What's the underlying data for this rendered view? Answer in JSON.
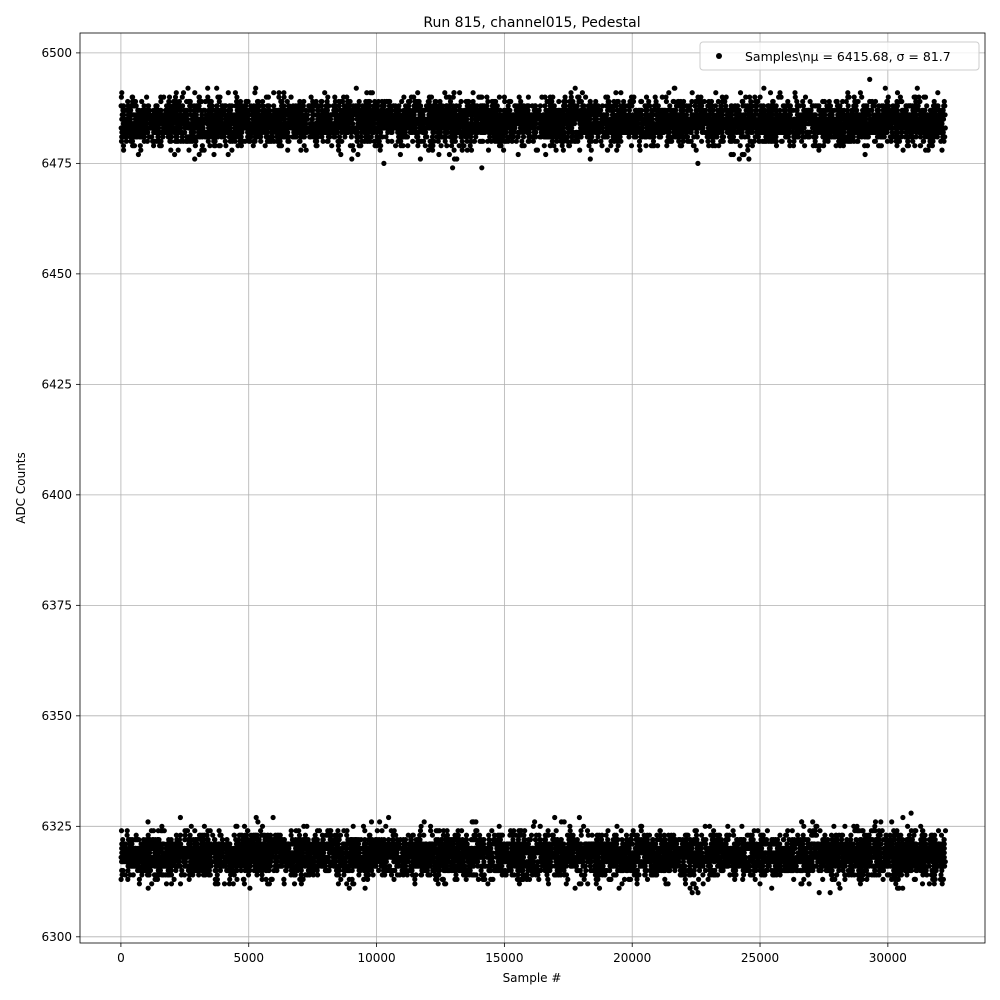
{
  "chart_data": {
    "type": "scatter",
    "title": "Run 815, channel015, Pedestal",
    "xlabel": "Sample #",
    "ylabel": "ADC Counts",
    "xlim": [
      -1600,
      33800
    ],
    "ylim": [
      6298.6,
      6504.5
    ],
    "xticks": [
      0,
      5000,
      10000,
      15000,
      20000,
      25000,
      30000
    ],
    "yticks": [
      6300,
      6325,
      6350,
      6375,
      6400,
      6425,
      6450,
      6475,
      6500
    ],
    "grid": true,
    "legend_position": "top-right",
    "series": [
      {
        "name": "Samples\\nμ = 6415.68, σ = 81.7",
        "color": "#000000",
        "marker": "circle",
        "n_samples": 32256,
        "bands": [
          {
            "center": 6484.3,
            "spread": 2.6,
            "min": 6474,
            "max": 6495
          },
          {
            "center": 6318.5,
            "spread": 2.6,
            "min": 6309,
            "max": 6328
          }
        ]
      }
    ]
  }
}
